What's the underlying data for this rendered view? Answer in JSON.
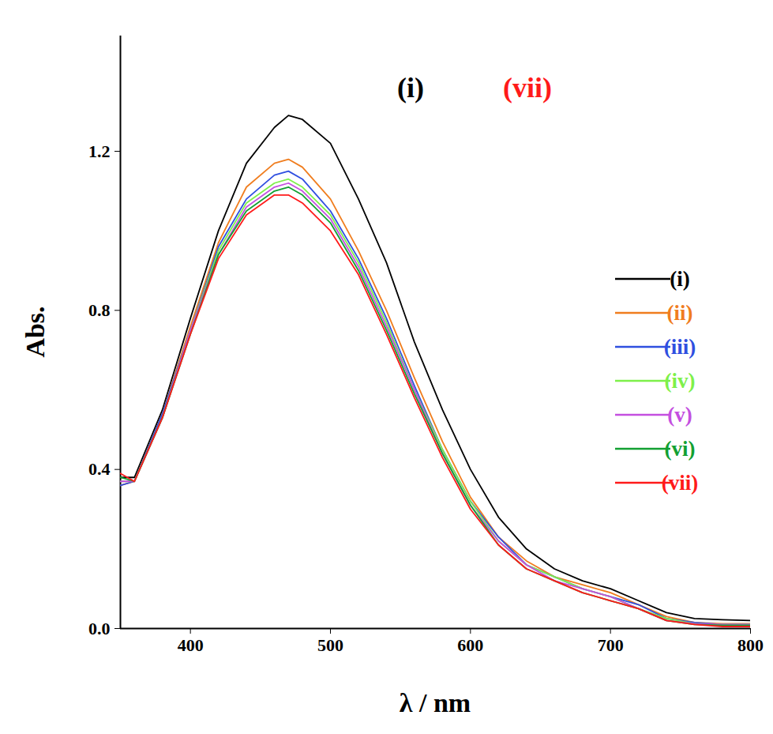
{
  "chart_data": {
    "type": "line",
    "x_label": "λ / nm",
    "y_label": "Abs.",
    "x": [
      350,
      360,
      380,
      400,
      420,
      440,
      460,
      470,
      480,
      500,
      520,
      540,
      560,
      580,
      600,
      620,
      640,
      660,
      680,
      700,
      720,
      740,
      760,
      780,
      800
    ],
    "series": [
      {
        "name": "(i)",
        "color": "#000000",
        "values": [
          0.38,
          0.38,
          0.55,
          0.78,
          1.0,
          1.17,
          1.26,
          1.29,
          1.28,
          1.22,
          1.08,
          0.92,
          0.72,
          0.55,
          0.4,
          0.28,
          0.2,
          0.15,
          0.12,
          0.1,
          0.07,
          0.04,
          0.025,
          0.022,
          0.02
        ]
      },
      {
        "name": "(ii)",
        "color": "#f07d1e",
        "values": [
          0.36,
          0.37,
          0.54,
          0.76,
          0.97,
          1.11,
          1.17,
          1.18,
          1.16,
          1.08,
          0.95,
          0.8,
          0.63,
          0.47,
          0.33,
          0.23,
          0.17,
          0.13,
          0.11,
          0.09,
          0.06,
          0.03,
          0.015,
          0.012,
          0.012
        ]
      },
      {
        "name": "(iii)",
        "color": "#2f4fe0",
        "values": [
          0.36,
          0.37,
          0.54,
          0.75,
          0.96,
          1.08,
          1.14,
          1.15,
          1.13,
          1.05,
          0.93,
          0.78,
          0.61,
          0.45,
          0.32,
          0.23,
          0.16,
          0.13,
          0.1,
          0.08,
          0.06,
          0.025,
          0.015,
          0.01,
          0.01
        ]
      },
      {
        "name": "(iv)",
        "color": "#7ef04a",
        "values": [
          0.37,
          0.37,
          0.53,
          0.75,
          0.95,
          1.07,
          1.12,
          1.13,
          1.11,
          1.04,
          0.92,
          0.77,
          0.6,
          0.45,
          0.32,
          0.22,
          0.16,
          0.13,
          0.1,
          0.08,
          0.05,
          0.025,
          0.012,
          0.01,
          0.01
        ]
      },
      {
        "name": "(v)",
        "color": "#c44fe0",
        "values": [
          0.37,
          0.37,
          0.53,
          0.75,
          0.94,
          1.06,
          1.11,
          1.12,
          1.1,
          1.03,
          0.91,
          0.76,
          0.6,
          0.44,
          0.31,
          0.22,
          0.16,
          0.12,
          0.1,
          0.08,
          0.05,
          0.02,
          0.012,
          0.01,
          0.01
        ]
      },
      {
        "name": "(vi)",
        "color": "#12a032",
        "values": [
          0.38,
          0.37,
          0.53,
          0.74,
          0.94,
          1.05,
          1.1,
          1.11,
          1.09,
          1.02,
          0.9,
          0.75,
          0.59,
          0.44,
          0.31,
          0.21,
          0.15,
          0.12,
          0.09,
          0.07,
          0.05,
          0.02,
          0.01,
          0.008,
          0.008
        ]
      },
      {
        "name": "(vii)",
        "color": "#ff1a1a",
        "values": [
          0.39,
          0.37,
          0.53,
          0.74,
          0.93,
          1.04,
          1.09,
          1.09,
          1.07,
          1.0,
          0.89,
          0.74,
          0.58,
          0.43,
          0.3,
          0.21,
          0.15,
          0.12,
          0.09,
          0.07,
          0.05,
          0.02,
          0.01,
          0.005,
          0.005
        ]
      }
    ],
    "xlim": [
      350,
      800
    ],
    "ylim": [
      0,
      1.49
    ],
    "xticks": [
      400,
      500,
      600,
      700,
      800
    ],
    "yticks": [
      {
        "value": 0,
        "label": "0.0"
      },
      {
        "value": 0.4,
        "label": "0.4"
      },
      {
        "value": 0.8,
        "label": "0.8"
      },
      {
        "value": 1.2,
        "label": "1.2"
      }
    ],
    "legend": "right",
    "grid": false,
    "annotations": [
      {
        "text": "(i)",
        "color": "#000000"
      },
      {
        "text": "(vii)",
        "color": "#ff1a1a"
      }
    ]
  }
}
